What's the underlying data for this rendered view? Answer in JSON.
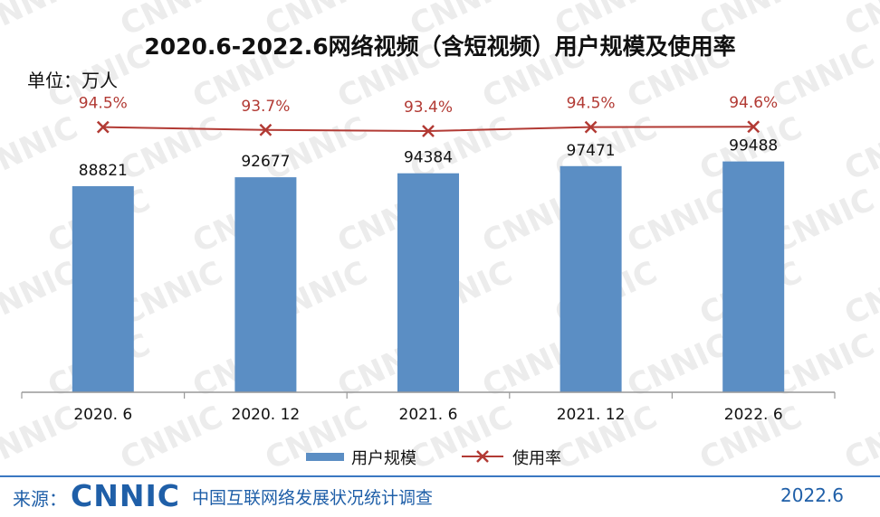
{
  "chart_data": {
    "type": "bar",
    "title": "2020.6-2022.6网络视频（含短视频）用户规模及使用率",
    "unit_label": "单位：万人",
    "categories": [
      "2020. 6",
      "2020. 12",
      "2021. 6",
      "2021. 12",
      "2022. 6"
    ],
    "series": [
      {
        "name": "用户规模",
        "type": "bar",
        "values": [
          88821,
          92677,
          94384,
          97471,
          99488
        ],
        "labels": [
          "88821",
          "92677",
          "94384",
          "97471",
          "99488"
        ],
        "color": "#5b8ec4"
      },
      {
        "name": "使用率",
        "type": "line",
        "values": [
          94.5,
          93.7,
          93.4,
          94.5,
          94.6
        ],
        "labels": [
          "94.5%",
          "93.7%",
          "93.4%",
          "94.5%",
          "94.6%"
        ],
        "color": "#b23a34"
      }
    ],
    "legend": "bottom-center",
    "grid": false
  },
  "watermark": "CNNIC",
  "footer": {
    "source_label": "来源：",
    "brand": "CNNIC",
    "report_name": "中国互联网络发展状况统计调查",
    "date": "2022.6"
  }
}
